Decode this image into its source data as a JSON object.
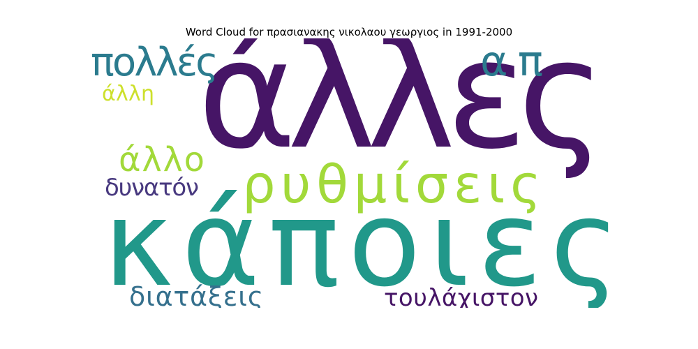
{
  "chart_data": {
    "type": "wordcloud",
    "title": "Word Cloud for πρασιανακης νικολαου γεωργιος in 1991-2000",
    "words": [
      {
        "text": "άλλες",
        "color": "#461566"
      },
      {
        "text": "κάποιες",
        "color": "#21988A"
      },
      {
        "text": "ρυθμίσεις",
        "color": "#A2D93A"
      },
      {
        "text": "πολλές",
        "color": "#2B7B8E"
      },
      {
        "text": "απ",
        "color": "#2B7B8E"
      },
      {
        "text": "άλλο",
        "color": "#A2D93A"
      },
      {
        "text": "άλλη",
        "color": "#CDE02C"
      },
      {
        "text": "δυνατόν",
        "color": "#48397F"
      },
      {
        "text": "διατάξεις",
        "color": "#35708D"
      },
      {
        "text": "τουλάχιστον",
        "color": "#461566"
      }
    ]
  }
}
